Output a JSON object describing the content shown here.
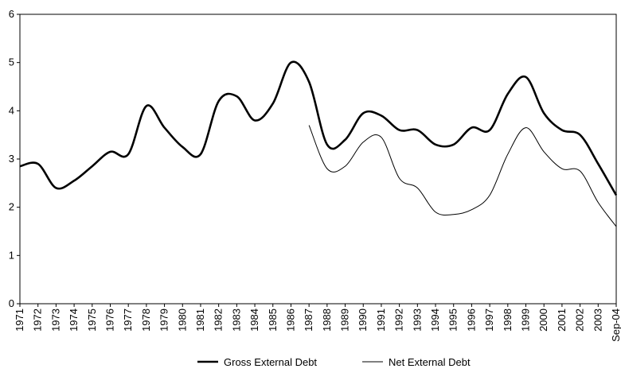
{
  "chart_data": {
    "type": "line",
    "categories": [
      "1971",
      "1972",
      "1973",
      "1974",
      "1975",
      "1976",
      "1977",
      "1978",
      "1979",
      "1980",
      "1981",
      "1982",
      "1983",
      "1984",
      "1985",
      "1986",
      "1987",
      "1988",
      "1989",
      "1990",
      "1991",
      "1992",
      "1993",
      "1994",
      "1995",
      "1996",
      "1997",
      "1998",
      "1999",
      "2000",
      "2001",
      "2002",
      "2003",
      "Sep-04"
    ],
    "series": [
      {
        "name": "Gross External Debt",
        "color": "#000000",
        "values": [
          2.85,
          2.9,
          2.4,
          2.55,
          2.85,
          3.15,
          3.1,
          4.1,
          3.65,
          3.25,
          3.1,
          4.2,
          4.3,
          3.8,
          4.15,
          5.0,
          4.6,
          3.3,
          3.4,
          3.95,
          3.9,
          3.6,
          3.6,
          3.3,
          3.3,
          3.65,
          3.6,
          4.35,
          4.7,
          3.95,
          3.6,
          3.5,
          2.9,
          2.25
        ]
      },
      {
        "name": "Net External Debt",
        "color": "#000000",
        "values": [
          null,
          null,
          null,
          null,
          null,
          null,
          null,
          null,
          null,
          null,
          null,
          null,
          null,
          null,
          null,
          null,
          3.7,
          2.8,
          2.85,
          3.35,
          3.45,
          2.6,
          2.4,
          1.9,
          1.85,
          1.95,
          2.25,
          3.1,
          3.65,
          3.15,
          2.8,
          2.75,
          2.1,
          1.6
        ]
      }
    ],
    "ylim": [
      0,
      6
    ],
    "yticks": [
      0,
      1,
      2,
      3,
      4,
      5,
      6
    ],
    "grid": false
  }
}
